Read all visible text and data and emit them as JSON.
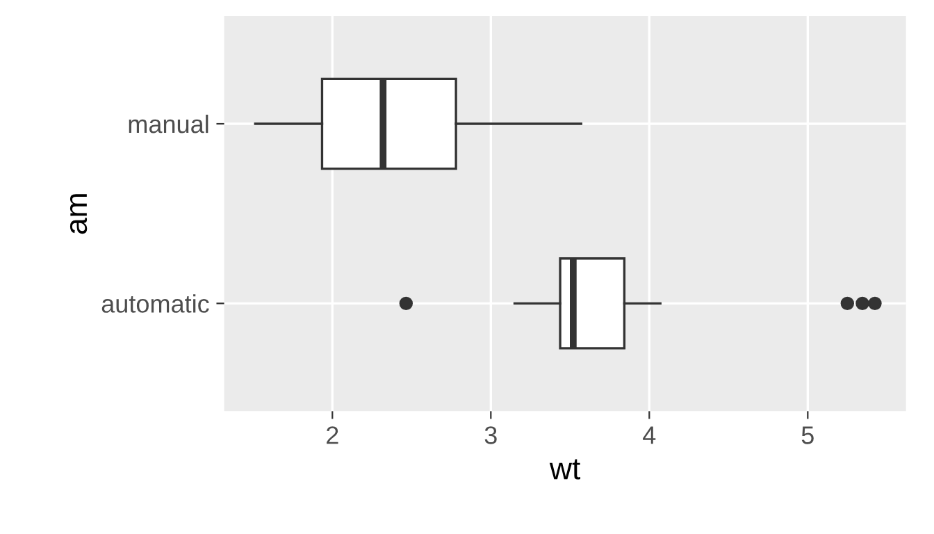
{
  "chart_data": {
    "type": "box",
    "orientation": "horizontal",
    "xlabel": "wt",
    "ylabel": "am",
    "categories": [
      "manual",
      "automatic"
    ],
    "boxes": [
      {
        "low": 1.513,
        "q1": 1.935,
        "median": 2.32,
        "q3": 2.78,
        "high": 3.57
      },
      {
        "low": 3.15,
        "q1": 3.4375,
        "median": 3.52,
        "q3": 3.8425,
        "high": 4.07,
        "outliers": [
          2.465,
          5.25,
          5.345,
          5.424
        ]
      }
    ],
    "color": "#333333",
    "xlim": [
      1.317,
      5.62
    ],
    "xticks": [
      2,
      3,
      4,
      5
    ],
    "grid": true
  }
}
